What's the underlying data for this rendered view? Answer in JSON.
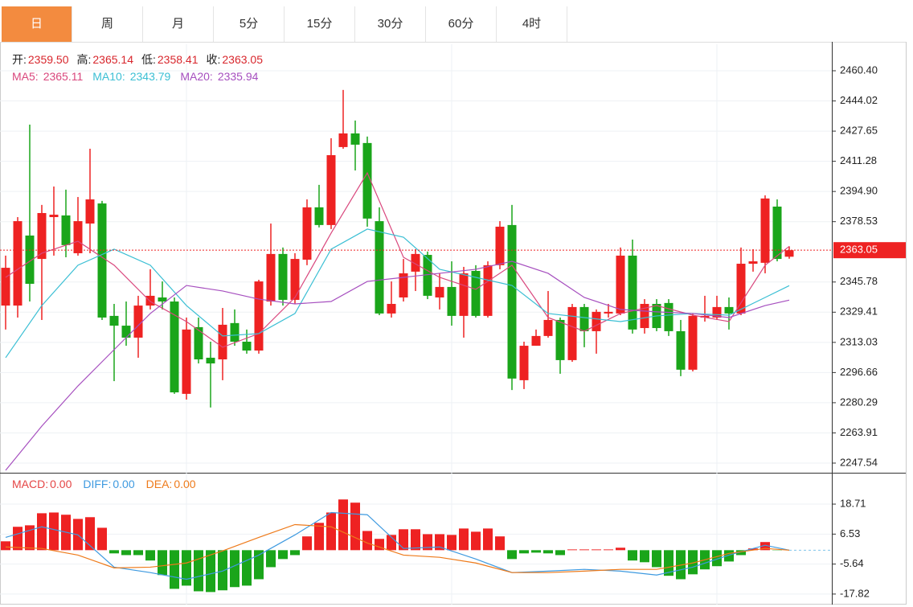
{
  "tabs": {
    "items": [
      "日",
      "周",
      "月",
      "5分",
      "15分",
      "30分",
      "60分",
      "4时"
    ],
    "active": 0
  },
  "chart_data": [
    {
      "type": "candlestick",
      "up_color": "#ee2222",
      "down_color": "#1aa51a",
      "grid": true,
      "vgrid_index": [
        15,
        37,
        59
      ],
      "ylim": [
        2242.3,
        2474.8
      ],
      "yticks": [
        {
          "value": 2460.4,
          "label": "2460.40"
        },
        {
          "value": 2444.02,
          "label": "2444.02"
        },
        {
          "value": 2427.65,
          "label": "2427.65"
        },
        {
          "value": 2411.28,
          "label": "2411.28"
        },
        {
          "value": 2394.9,
          "label": "2394.90"
        },
        {
          "value": 2378.53,
          "label": "2378.53"
        },
        {
          "value": 2345.78,
          "label": "2345.78"
        },
        {
          "value": 2329.41,
          "label": "2329.41"
        },
        {
          "value": 2313.03,
          "label": "2313.03"
        },
        {
          "value": 2296.66,
          "label": "2296.66"
        },
        {
          "value": 2280.29,
          "label": "2280.29"
        },
        {
          "value": 2263.91,
          "label": "2263.91"
        },
        {
          "value": 2247.54,
          "label": "2247.54"
        }
      ],
      "last_price": {
        "value": 2363.05,
        "label": "2363.05"
      },
      "legend_ohlc": [
        {
          "label": "开:",
          "text": "2359.50"
        },
        {
          "label": "高:",
          "text": "2365.14"
        },
        {
          "label": "低:",
          "text": "2358.41"
        },
        {
          "label": "收:",
          "text": "2363.05"
        }
      ],
      "open": [
        2333.0,
        2333.0,
        2371.0,
        2358.3,
        2381.0,
        2381.9,
        2361.4,
        2377.5,
        2388.4,
        2327.4,
        2322.1,
        2315.6,
        2333.0,
        2337.4,
        2335.2,
        2285.1,
        2321.3,
        2304.7,
        2303.8,
        2323.5,
        2313.4,
        2308.6,
        2335.2,
        2361.0,
        2336.1,
        2357.9,
        2386.3,
        2376.7,
        2419.0,
        2426.4,
        2421.2,
        2378.8,
        2328.7,
        2337.4,
        2351.4,
        2360.5,
        2337.4,
        2343.1,
        2327.4,
        2351.8,
        2327.4,
        2354.9,
        2376.7,
        2292.5,
        2311.2,
        2316.5,
        2325.2,
        2303.4,
        2332.2,
        2319.1,
        2328.7,
        2328.7,
        2360.1,
        2320.8,
        2333.9,
        2334.4,
        2319.1,
        2298.2,
        2326.5,
        2326.5,
        2332.2,
        2328.7,
        2355.7,
        2356.2,
        2386.7,
        2359.5
      ],
      "high": [
        2360.1,
        2381.0,
        2431.2,
        2387.6,
        2397.6,
        2395.9,
        2391.9,
        2418.1,
        2389.8,
        2333.9,
        2335.2,
        2338.3,
        2352.7,
        2346.1,
        2337.4,
        2326.5,
        2326.5,
        2313.4,
        2331.7,
        2330.9,
        2320.0,
        2347.0,
        2377.5,
        2364.5,
        2361.4,
        2390.6,
        2398.5,
        2423.8,
        2450.0,
        2433.4,
        2424.7,
        2386.3,
        2346.1,
        2358.3,
        2363.6,
        2362.3,
        2350.5,
        2357.0,
        2354.0,
        2354.9,
        2357.0,
        2378.8,
        2387.6,
        2313.4,
        2320.0,
        2340.9,
        2326.5,
        2333.9,
        2333.9,
        2330.9,
        2333.9,
        2364.5,
        2368.8,
        2336.5,
        2336.5,
        2336.5,
        2325.2,
        2328.7,
        2338.3,
        2338.3,
        2337.4,
        2364.5,
        2363.6,
        2392.8,
        2390.6,
        2365.14
      ],
      "low": [
        2320.0,
        2326.5,
        2335.2,
        2325.2,
        2360.1,
        2359.2,
        2360.1,
        2361.4,
        2325.2,
        2292.0,
        2311.2,
        2304.7,
        2330.9,
        2330.9,
        2285.1,
        2282.0,
        2301.6,
        2277.7,
        2292.5,
        2311.2,
        2306.9,
        2306.9,
        2333.0,
        2333.0,
        2333.9,
        2354.9,
        2375.4,
        2374.5,
        2418.1,
        2406.3,
        2375.8,
        2327.8,
        2326.5,
        2335.2,
        2340.9,
        2336.5,
        2330.9,
        2322.1,
        2315.6,
        2326.5,
        2326.5,
        2352.7,
        2287.2,
        2287.7,
        2311.2,
        2315.6,
        2296.0,
        2302.5,
        2310.4,
        2306.9,
        2326.5,
        2327.8,
        2317.8,
        2317.8,
        2319.1,
        2316.5,
        2294.7,
        2297.3,
        2324.3,
        2325.2,
        2320.0,
        2327.8,
        2351.4,
        2350.5,
        2357.0,
        2358.41
      ],
      "close": [
        2353.5,
        2378.8,
        2344.8,
        2383.2,
        2382.3,
        2365.8,
        2378.8,
        2390.6,
        2326.5,
        2322.1,
        2315.6,
        2333.0,
        2338.3,
        2335.2,
        2285.9,
        2320.0,
        2303.8,
        2301.6,
        2322.6,
        2313.4,
        2308.6,
        2346.1,
        2361.0,
        2336.1,
        2358.3,
        2386.3,
        2376.7,
        2414.6,
        2426.4,
        2420.3,
        2380.2,
        2328.7,
        2333.9,
        2350.5,
        2361.0,
        2338.3,
        2343.1,
        2327.4,
        2350.5,
        2327.4,
        2354.9,
        2375.8,
        2293.4,
        2311.2,
        2316.5,
        2325.2,
        2303.4,
        2332.2,
        2319.1,
        2329.6,
        2329.6,
        2360.1,
        2320.0,
        2333.9,
        2320.8,
        2319.1,
        2298.2,
        2327.4,
        2327.4,
        2332.2,
        2328.7,
        2355.7,
        2357.0,
        2391.1,
        2358.3,
        2363.05
      ],
      "series": [
        {
          "name": "MA5:",
          "label": "2365.11",
          "color": "#d9477d",
          "x": [
            0,
            3,
            6,
            9,
            12,
            15,
            18,
            21,
            24,
            27,
            30,
            33,
            36,
            39,
            42,
            45,
            48,
            51,
            54,
            57,
            60,
            63,
            65
          ],
          "values": [
            2348.3,
            2361.4,
            2367.9,
            2354.9,
            2335.2,
            2324.3,
            2310.4,
            2317.8,
            2337.4,
            2372.3,
            2405.0,
            2359.2,
            2348.3,
            2341.8,
            2354.9,
            2326.5,
            2319.1,
            2328.7,
            2333.0,
            2327.8,
            2324.3,
            2354.9,
            2365.11
          ]
        },
        {
          "name": "MA10:",
          "label": "2343.79",
          "color": "#3bbfd4",
          "x": [
            0,
            3,
            6,
            9,
            12,
            15,
            18,
            21,
            24,
            27,
            30,
            33,
            36,
            39,
            42,
            45,
            48,
            51,
            54,
            57,
            60,
            63,
            65
          ],
          "values": [
            2304.7,
            2333.0,
            2354.9,
            2363.6,
            2354.9,
            2333.0,
            2316.5,
            2317.8,
            2328.7,
            2363.6,
            2374.5,
            2370.1,
            2352.7,
            2348.3,
            2343.9,
            2328.7,
            2326.5,
            2324.3,
            2327.4,
            2328.7,
            2327.8,
            2337.4,
            2343.79
          ]
        },
        {
          "name": "MA20:",
          "label": "2335.94",
          "color": "#a64fbf",
          "x": [
            0,
            3,
            6,
            9,
            12,
            15,
            18,
            21,
            24,
            27,
            30,
            33,
            36,
            39,
            42,
            45,
            48,
            51,
            54,
            57,
            60,
            63,
            65
          ],
          "values": [
            2243.6,
            2267.6,
            2289.4,
            2309.1,
            2328.7,
            2343.9,
            2340.9,
            2336.5,
            2333.9,
            2335.2,
            2346.1,
            2348.3,
            2350.5,
            2352.7,
            2357.0,
            2350.5,
            2337.4,
            2330.9,
            2329.6,
            2328.7,
            2326.5,
            2333.0,
            2335.94
          ]
        }
      ]
    },
    {
      "type": "bar",
      "name": "MACD:",
      "label": "0.00",
      "legend_color": "#e54545",
      "up_color": "#ee2222",
      "down_color": "#1aa51a",
      "ylim": [
        -22.1,
        30.8
      ],
      "yticks": [
        18.71,
        6.53,
        -5.64,
        -17.82
      ],
      "values": [
        3.6,
        9.5,
        10.1,
        15.0,
        15.3,
        14.4,
        12.7,
        13.4,
        9.1,
        -1.3,
        -2.0,
        -2.0,
        -4.2,
        -10.1,
        -15.7,
        -14.4,
        -16.7,
        -17.0,
        -16.3,
        -15.0,
        -14.4,
        -11.8,
        -6.9,
        -3.6,
        -2.0,
        5.6,
        11.1,
        15.3,
        20.6,
        19.3,
        7.8,
        4.6,
        6.2,
        8.5,
        8.5,
        6.5,
        6.5,
        6.2,
        8.8,
        7.5,
        8.8,
        5.6,
        -3.6,
        -1.3,
        -1.0,
        -1.3,
        -2.0,
        0.3,
        0.3,
        0.3,
        0.3,
        1.0,
        -4.2,
        -4.9,
        -6.9,
        -10.4,
        -11.8,
        -9.8,
        -7.8,
        -6.5,
        -4.6,
        -2.0,
        0.7,
        3.3,
        -0.1,
        0
      ],
      "series": [
        {
          "name": "DIFF:",
          "label": "0.00",
          "color": "#3e9ae0",
          "x": [
            0,
            3,
            6,
            9,
            12,
            15,
            18,
            21,
            24,
            27,
            30,
            33,
            36,
            39,
            42,
            45,
            48,
            51,
            54,
            57,
            60,
            63,
            65
          ],
          "values": [
            5.2,
            9.5,
            6.2,
            -6.9,
            -9.1,
            -11.8,
            -8.5,
            -2.0,
            6.2,
            15.3,
            14.4,
            0.7,
            1.3,
            -3.6,
            -9.1,
            -8.5,
            -7.8,
            -8.5,
            -10.1,
            -6.9,
            -2.0,
            2.0,
            0
          ]
        },
        {
          "name": "DEA:",
          "label": "0.00",
          "color": "#ee7a1a",
          "x": [
            0,
            3,
            6,
            9,
            12,
            15,
            18,
            21,
            24,
            27,
            30,
            33,
            36,
            39,
            42,
            45,
            48,
            51,
            54,
            57,
            60,
            63,
            65
          ],
          "values": [
            1.3,
            0.7,
            -2.0,
            -7.2,
            -6.9,
            -5.2,
            -0.3,
            5.2,
            10.4,
            9.5,
            2.9,
            -2.0,
            -2.9,
            -5.2,
            -9.1,
            -9.1,
            -8.5,
            -7.8,
            -7.8,
            -5.2,
            -1.3,
            0.7,
            0
          ]
        }
      ]
    }
  ]
}
